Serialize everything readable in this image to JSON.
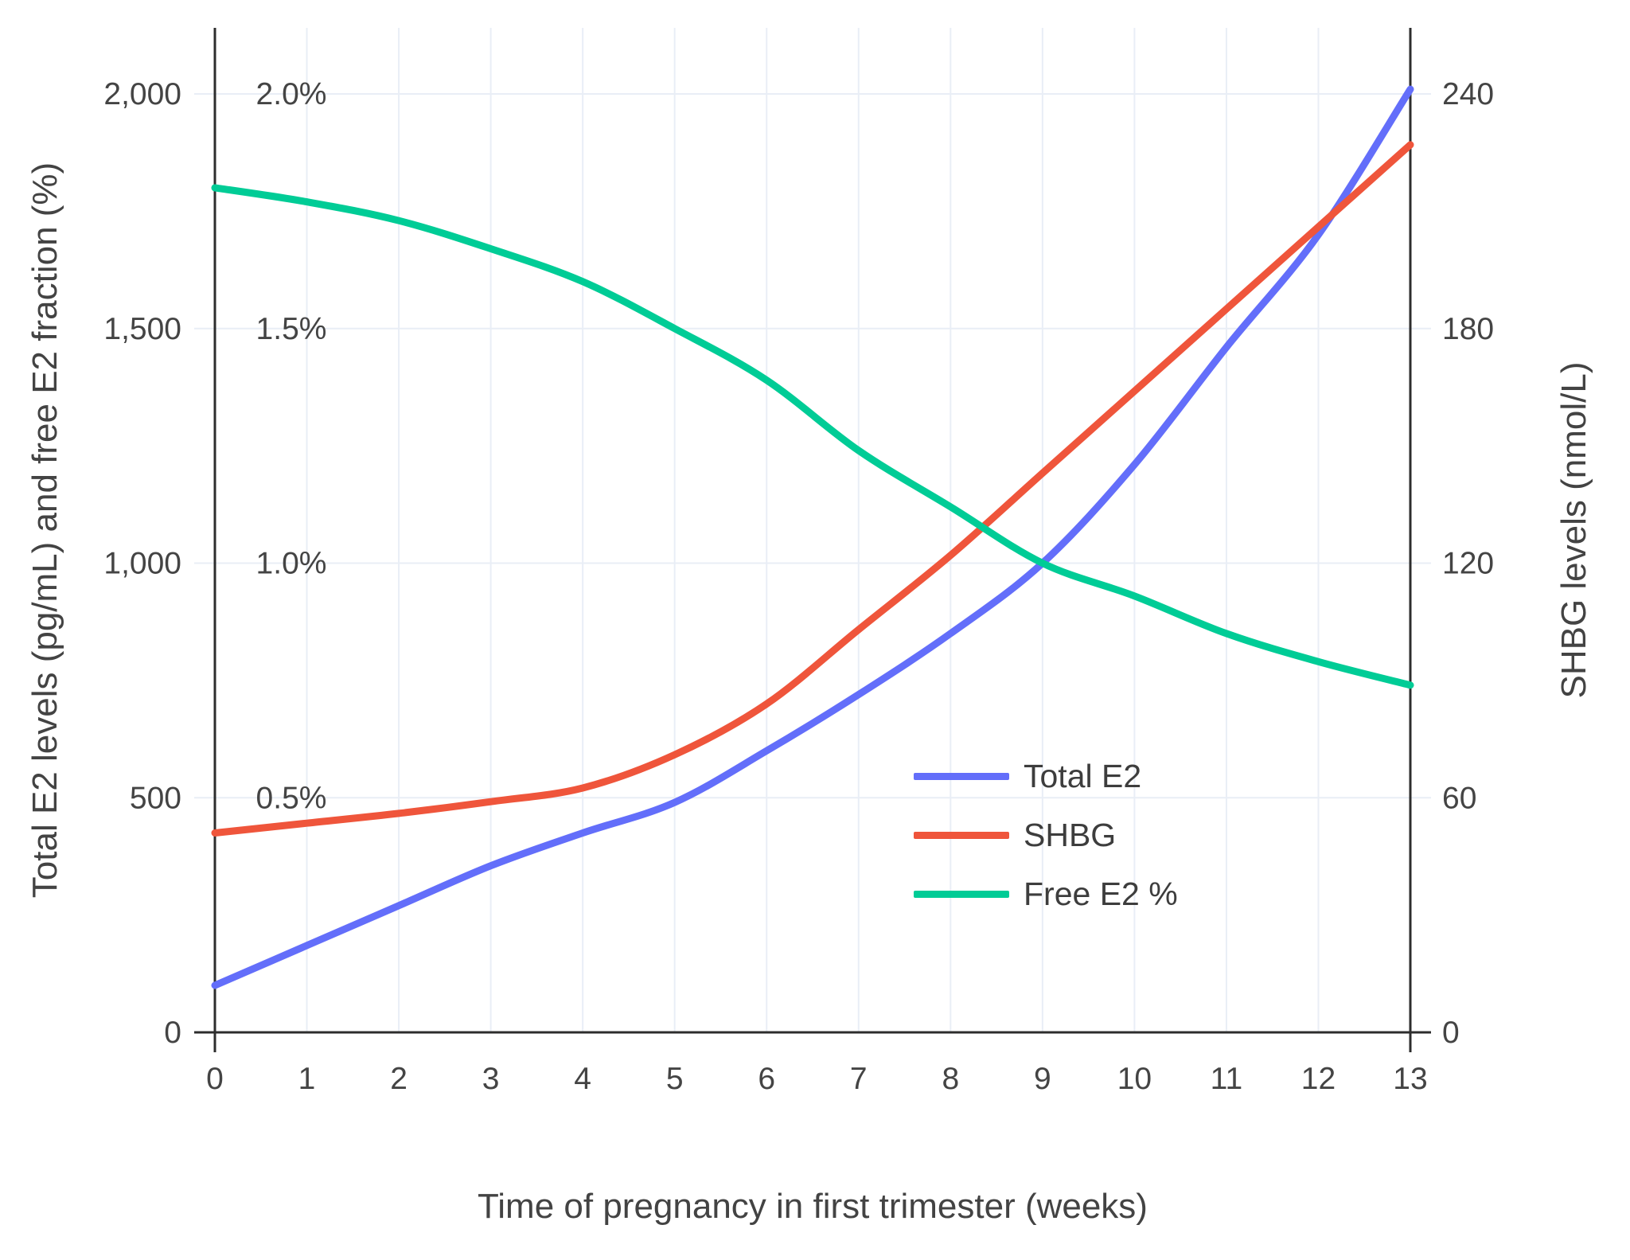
{
  "chart_data": {
    "type": "line",
    "title": "",
    "xlabel": "Time of pregnancy in first trimester (weeks)",
    "ylabel_left": "Total E2 levels (pg/mL) and free E2 fraction (%)",
    "ylabel_right": "SHBG levels (nmol/L)",
    "x": [
      0,
      1,
      2,
      3,
      4,
      5,
      6,
      7,
      8,
      9,
      10,
      11,
      12,
      13
    ],
    "x_tick_labels": [
      "0",
      "1",
      "2",
      "3",
      "4",
      "5",
      "6",
      "7",
      "8",
      "9",
      "10",
      "11",
      "12",
      "13"
    ],
    "axes": {
      "left": {
        "tick_labels": [
          "0",
          "500",
          "1,000",
          "1,500",
          "2,000"
        ],
        "tick_values": [
          0,
          500,
          1000,
          1500,
          2000
        ],
        "range": [
          0,
          2000
        ]
      },
      "left_percent": {
        "tick_labels": [
          "0.5%",
          "1.0%",
          "1.5%",
          "2.0%"
        ],
        "tick_values": [
          0.5,
          1.0,
          1.5,
          2.0
        ],
        "range": [
          0,
          2.0
        ]
      },
      "right": {
        "tick_labels": [
          "0",
          "60",
          "120",
          "180",
          "240"
        ],
        "tick_values": [
          0,
          60,
          120,
          180,
          240
        ],
        "range": [
          0,
          240
        ]
      }
    },
    "series": [
      {
        "name": "Total E2",
        "color": "#636EFA",
        "axis": "left",
        "units": "pg/mL",
        "values": [
          100,
          185,
          270,
          355,
          425,
          490,
          600,
          720,
          850,
          1000,
          1210,
          1460,
          1700,
          2010
        ]
      },
      {
        "name": "SHBG",
        "color": "#EF553B",
        "axis": "right",
        "units": "nmol/L",
        "values": [
          51,
          53.5,
          56,
          59,
          62.5,
          71,
          84,
          103,
          122,
          143,
          164,
          185,
          206,
          227
        ]
      },
      {
        "name": "Free E2 %",
        "color": "#00CC96",
        "axis": "percent",
        "units": "%",
        "values": [
          1.8,
          1.77,
          1.73,
          1.67,
          1.6,
          1.5,
          1.39,
          1.24,
          1.12,
          1.0,
          0.93,
          0.85,
          0.79,
          0.74
        ]
      }
    ],
    "legend": {
      "position": "inside-right",
      "entries": [
        "Total E2",
        "SHBG",
        "Free E2 %"
      ]
    },
    "grid": {
      "on": true,
      "color": "#E9EEF6"
    },
    "style_colors": {
      "axis_line": "#2D2D2D",
      "tick_text": "#444444"
    }
  }
}
